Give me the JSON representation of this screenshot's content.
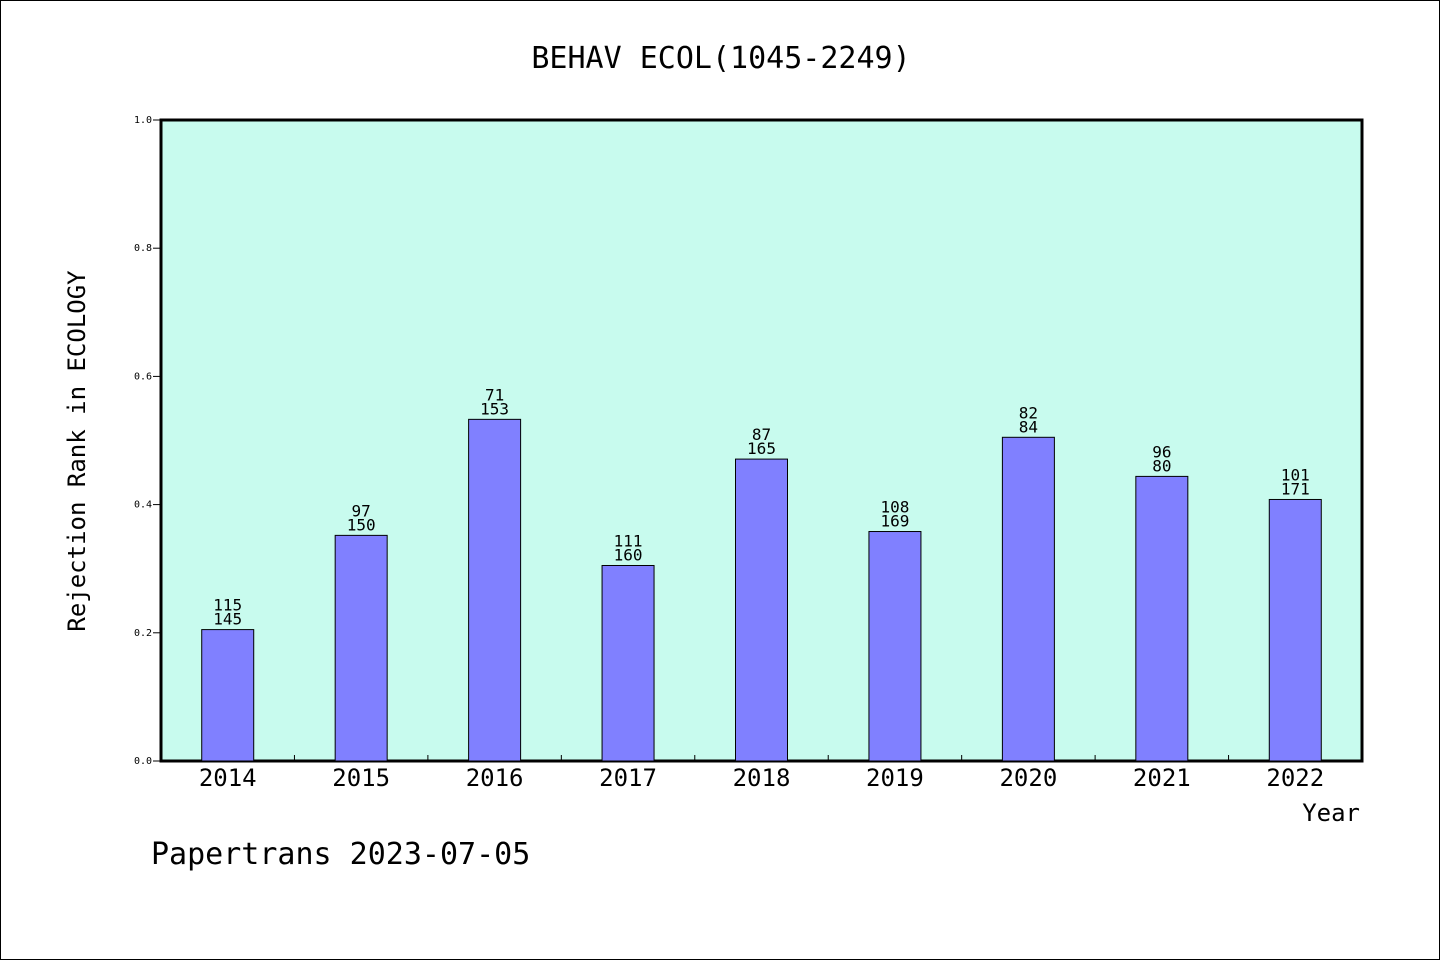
{
  "chart_data": {
    "type": "bar",
    "title": "BEHAV ECOL(1045-2249)",
    "xlabel": "Year",
    "ylabel": "Rejection Rank in ECOLOGY",
    "categories": [
      "2014",
      "2015",
      "2016",
      "2017",
      "2018",
      "2019",
      "2020",
      "2021",
      "2022"
    ],
    "values": [
      0.205,
      0.352,
      0.533,
      0.305,
      0.471,
      0.358,
      0.505,
      0.444,
      0.408
    ],
    "bar_labels": [
      [
        "115",
        "145"
      ],
      [
        "97",
        "150"
      ],
      [
        "71",
        "153"
      ],
      [
        "111",
        "160"
      ],
      [
        "87",
        "165"
      ],
      [
        "108",
        "169"
      ],
      [
        "82",
        "84"
      ],
      [
        "96",
        "80"
      ],
      [
        "101",
        "171"
      ]
    ],
    "ylim": [
      0,
      1.0
    ],
    "yticks": [
      "0.0",
      "0.2",
      "0.4",
      "0.6",
      "0.8",
      "1.0"
    ],
    "grid": false,
    "colors": {
      "plot_background": "#c8fbee",
      "bar_fill": "#8080ff",
      "bar_edge": "#000000"
    }
  },
  "footer": "Papertrans 2023-07-05"
}
